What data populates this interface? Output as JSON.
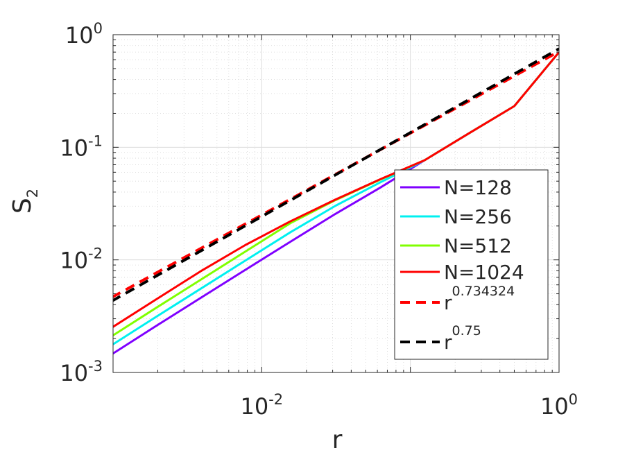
{
  "chart_data": {
    "type": "line",
    "title": "",
    "xlabel": "r",
    "ylabel": "S",
    "ylabel_sub": "2",
    "xscale": "log",
    "yscale": "log",
    "xlim": [
      0.001,
      1
    ],
    "ylim": [
      0.001,
      1
    ],
    "grid": true,
    "minor_grid": true,
    "x_ticks": [
      {
        "value": 0.01,
        "base": "10",
        "exp": "-2"
      },
      {
        "value": 1,
        "base": "10",
        "exp": "0"
      }
    ],
    "y_ticks": [
      {
        "value": 0.001,
        "base": "10",
        "exp": "-3"
      },
      {
        "value": 0.01,
        "base": "10",
        "exp": "-2"
      },
      {
        "value": 0.1,
        "base": "10",
        "exp": "-1"
      },
      {
        "value": 1,
        "base": "10",
        "exp": "0"
      }
    ],
    "legend_position": "right",
    "series": [
      {
        "name": "N=128",
        "color": "#7f00ff",
        "style": "solid",
        "x": [
          0.00098,
          0.00195,
          0.0039,
          0.0078,
          0.0156,
          0.0313,
          0.0625,
          0.125,
          0.25,
          0.5,
          1.0
        ],
        "y": [
          0.00145,
          0.00259,
          0.00461,
          0.00819,
          0.0145,
          0.0256,
          0.0437,
          0.0769,
          0.134,
          0.232,
          0.7
        ]
      },
      {
        "name": "N=256",
        "color": "#00f0f0",
        "style": "solid",
        "x": [
          0.00098,
          0.00195,
          0.0039,
          0.0078,
          0.0156,
          0.0313,
          0.0625,
          0.125,
          0.25,
          0.5,
          1.0
        ],
        "y": [
          0.00175,
          0.00312,
          0.00556,
          0.0099,
          0.0176,
          0.0302,
          0.0487,
          0.0769,
          0.134,
          0.232,
          0.7
        ]
      },
      {
        "name": "N=512",
        "color": "#80ff00",
        "style": "solid",
        "x": [
          0.00098,
          0.00195,
          0.0039,
          0.0078,
          0.0156,
          0.0313,
          0.0625,
          0.125,
          0.25,
          0.5,
          1.0
        ],
        "y": [
          0.0021,
          0.00375,
          0.00668,
          0.0119,
          0.0212,
          0.0339,
          0.0515,
          0.0769,
          0.134,
          0.232,
          0.7
        ]
      },
      {
        "name": "N=1024",
        "color": "#ff0000",
        "style": "solid",
        "x": [
          0.00098,
          0.00195,
          0.0039,
          0.0078,
          0.0156,
          0.0313,
          0.0625,
          0.125,
          0.25,
          0.5,
          1.0
        ],
        "y": [
          0.0025,
          0.00446,
          0.00795,
          0.0136,
          0.022,
          0.0343,
          0.0519,
          0.0769,
          0.134,
          0.232,
          0.7
        ]
      },
      {
        "name": "r",
        "name_sup": "0.734324",
        "color": "#ff0000",
        "style": "dashed",
        "x": [
          0.00098,
          1.0
        ],
        "y": [
          0.00464,
          0.71
        ]
      },
      {
        "name": "r",
        "name_sup": "0.75",
        "color": "#000000",
        "style": "dashed",
        "x": [
          0.00098,
          1.0
        ],
        "y": [
          0.0043,
          0.75
        ]
      }
    ]
  }
}
